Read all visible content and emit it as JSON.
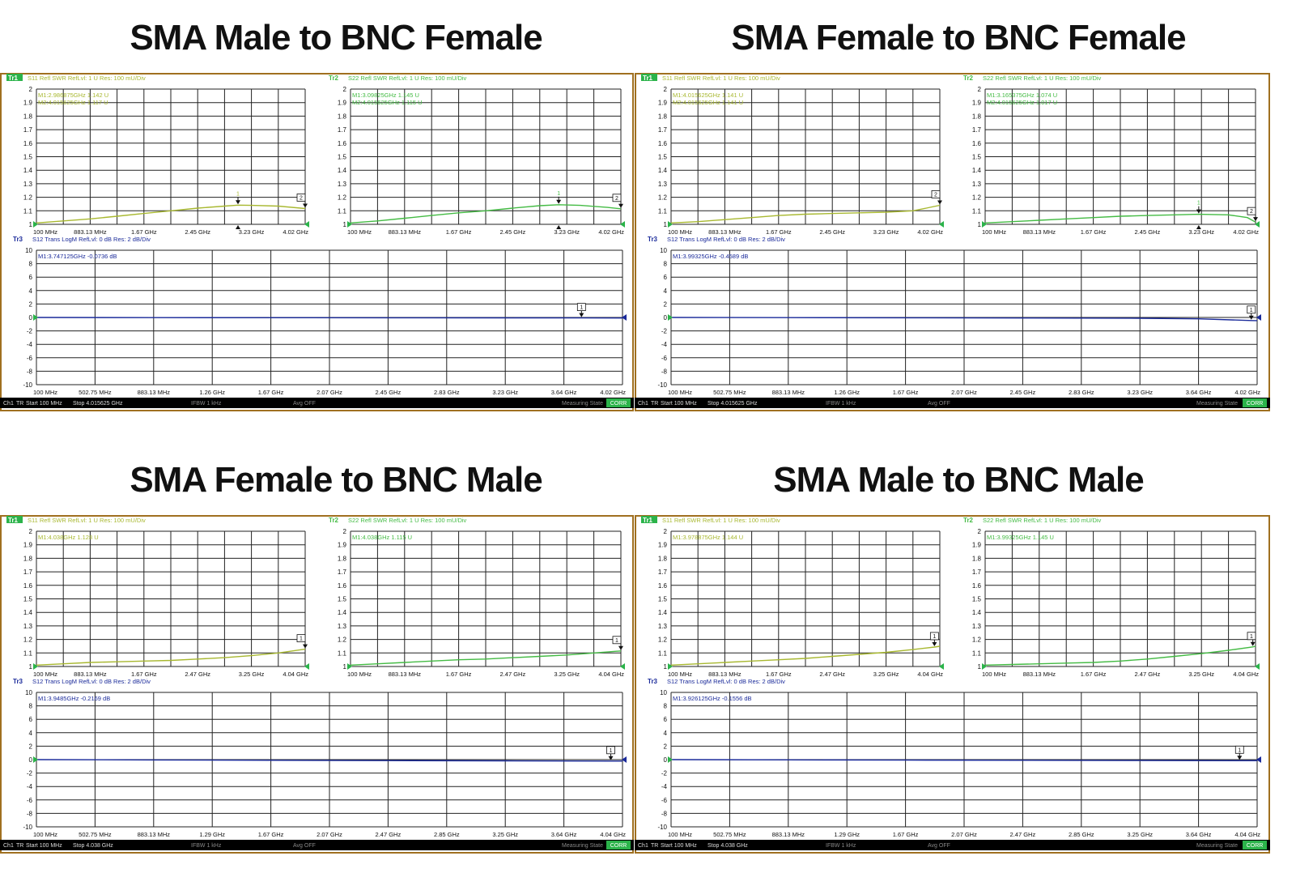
{
  "status_labels": {
    "ch": "Ch1",
    "tr": "TR",
    "start": "Start 100 MHz",
    "ifbw": "IFBW 1 kHz",
    "avg": "Avg OFF",
    "state": "Measuring State",
    "corr": "CORR"
  },
  "colors": {
    "s11": "#a8b830",
    "s22": "#44bb44",
    "s12": "#1a2a9a",
    "grid": "#222222",
    "frame": "#a07020",
    "status_bg": "#000000",
    "corr_bg": "#2bb34a"
  },
  "panels": [
    {
      "title": "SMA Male to BNC Female",
      "stop": "Stop 4.015625 GHz",
      "chart_data": [
        {
          "type": "line",
          "trace_badge": "Tr1",
          "header": "S11 Refl SWR RefLvl: 1  U Res: 100 mU/Div",
          "ylim": [
            1,
            2
          ],
          "yticks": [
            "1",
            "1.1",
            "1.2",
            "1.3",
            "1.4",
            "1.5",
            "1.6",
            "1.7",
            "1.8",
            "1.9",
            "2"
          ],
          "xticks": [
            "100 MHz",
            "883.13 MHz",
            "1.67 GHz",
            "2.45 GHz",
            "3.23 GHz",
            "4.02 GHz"
          ],
          "markers": [
            "M1:2.986875GHz  1.142  U",
            "M2:4.015625GHz  1.117  U"
          ],
          "marker_points": [
            {
              "label": "1",
              "x": 0.75
            },
            {
              "label": "2",
              "x": 1.0
            }
          ],
          "x": [
            0,
            0.1,
            0.2,
            0.3,
            0.4,
            0.5,
            0.6,
            0.7,
            0.75,
            0.8,
            0.9,
            1.0
          ],
          "y": [
            1.01,
            1.025,
            1.04,
            1.06,
            1.08,
            1.1,
            1.12,
            1.135,
            1.142,
            1.14,
            1.135,
            1.117
          ]
        },
        {
          "type": "line",
          "trace_badge": "Tr2",
          "header": "S22 Refl SWR RefLvl: 1  U Res: 100 mU/Div",
          "ylim": [
            1,
            2
          ],
          "yticks": [
            "1",
            "1.1",
            "1.2",
            "1.3",
            "1.4",
            "1.5",
            "1.6",
            "1.7",
            "1.8",
            "1.9",
            "2"
          ],
          "xticks": [
            "100 MHz",
            "883.13 MHz",
            "1.67 GHz",
            "2.45 GHz",
            "3.23 GHz",
            "4.02 GHz"
          ],
          "markers": [
            "M1:3.09825GHz  1.145  U",
            "M2:4.015625GHz  1.115  U"
          ],
          "marker_points": [
            {
              "label": "1",
              "x": 0.77
            },
            {
              "label": "2",
              "x": 1.0
            }
          ],
          "x": [
            0,
            0.1,
            0.2,
            0.3,
            0.4,
            0.5,
            0.6,
            0.7,
            0.77,
            0.85,
            0.95,
            1.0
          ],
          "y": [
            1.01,
            1.025,
            1.045,
            1.065,
            1.085,
            1.1,
            1.12,
            1.138,
            1.145,
            1.14,
            1.125,
            1.115
          ]
        },
        {
          "type": "line",
          "trace_badge": "Tr3",
          "header": "S12 Trans LogM RefLvl: 0  dB Res: 2  dB/Div",
          "ylim": [
            -10,
            10
          ],
          "yticks": [
            "-10",
            "-8",
            "-6",
            "-4",
            "-2",
            "0",
            "2",
            "4",
            "6",
            "8",
            "10"
          ],
          "xticks": [
            "100 MHz",
            "502.75 MHz",
            "883.13 MHz",
            "1.26 GHz",
            "1.67 GHz",
            "2.07 GHz",
            "2.45 GHz",
            "2.83 GHz",
            "3.23 GHz",
            "3.64 GHz",
            "4.02 GHz"
          ],
          "markers": [
            "M1:3.747125GHz  -0.0736  dB"
          ],
          "marker_points": [
            {
              "label": "1",
              "x": 0.93
            }
          ],
          "x": [
            0,
            0.2,
            0.4,
            0.6,
            0.8,
            0.93,
            1.0
          ],
          "y": [
            0,
            -0.02,
            -0.04,
            -0.05,
            -0.06,
            -0.0736,
            -0.08
          ]
        }
      ]
    },
    {
      "title": "SMA Female to BNC Female",
      "stop": "Stop 4.015625 GHz",
      "chart_data": [
        {
          "type": "line",
          "trace_badge": "Tr1",
          "header": "S11 Refl SWR RefLvl: 1  U Res: 100 mU/Div",
          "ylim": [
            1,
            2
          ],
          "yticks": [
            "1",
            "1.1",
            "1.2",
            "1.3",
            "1.4",
            "1.5",
            "1.6",
            "1.7",
            "1.8",
            "1.9",
            "2"
          ],
          "xticks": [
            "100 MHz",
            "883.13 MHz",
            "1.67 GHz",
            "2.45 GHz",
            "3.23 GHz",
            "4.02 GHz"
          ],
          "markers": [
            "M1:4.015625GHz  1.141  U",
            "M2:4.015625GHz  1.141  U"
          ],
          "marker_points": [
            {
              "label": "2",
              "x": 1.0
            }
          ],
          "x": [
            0,
            0.1,
            0.2,
            0.3,
            0.4,
            0.5,
            0.6,
            0.7,
            0.8,
            0.9,
            0.95,
            1.0
          ],
          "y": [
            1.01,
            1.02,
            1.035,
            1.05,
            1.065,
            1.075,
            1.08,
            1.085,
            1.09,
            1.1,
            1.12,
            1.141
          ]
        },
        {
          "type": "line",
          "trace_badge": "Tr2",
          "header": "S22 Refl SWR RefLvl: 1  U Res: 100 mU/Div",
          "ylim": [
            1,
            2
          ],
          "yticks": [
            "1",
            "1.1",
            "1.2",
            "1.3",
            "1.4",
            "1.5",
            "1.6",
            "1.7",
            "1.8",
            "1.9",
            "2"
          ],
          "xticks": [
            "100 MHz",
            "883.13 MHz",
            "1.67 GHz",
            "2.45 GHz",
            "3.23 GHz",
            "4.02 GHz"
          ],
          "markers": [
            "M1:3.165375GHz  1.074  U",
            "M2:4.015625GHz  1.017  U"
          ],
          "marker_points": [
            {
              "label": "1",
              "x": 0.79
            },
            {
              "label": "2",
              "x": 1.0
            }
          ],
          "x": [
            0,
            0.1,
            0.2,
            0.3,
            0.4,
            0.5,
            0.6,
            0.7,
            0.79,
            0.9,
            0.97,
            1.0
          ],
          "y": [
            1.01,
            1.02,
            1.03,
            1.04,
            1.05,
            1.06,
            1.065,
            1.07,
            1.074,
            1.07,
            1.05,
            1.017
          ]
        },
        {
          "type": "line",
          "trace_badge": "Tr3",
          "header": "S12 Trans LogM RefLvl: 0  dB Res: 2  dB/Div",
          "ylim": [
            -10,
            10
          ],
          "yticks": [
            "-10",
            "-8",
            "-6",
            "-4",
            "-2",
            "0",
            "2",
            "4",
            "6",
            "8",
            "10"
          ],
          "xticks": [
            "100 MHz",
            "502.75 MHz",
            "883.13 MHz",
            "1.26 GHz",
            "1.67 GHz",
            "2.07 GHz",
            "2.45 GHz",
            "2.83 GHz",
            "3.23 GHz",
            "3.64 GHz",
            "4.02 GHz"
          ],
          "markers": [
            "M1:3.99325GHz  -0.4589  dB"
          ],
          "marker_points": [
            {
              "label": "1",
              "x": 0.99
            }
          ],
          "x": [
            0,
            0.2,
            0.4,
            0.6,
            0.8,
            0.9,
            0.99,
            1.0
          ],
          "y": [
            0,
            -0.03,
            -0.05,
            -0.08,
            -0.12,
            -0.2,
            -0.4589,
            -0.47
          ]
        }
      ]
    },
    {
      "title": "SMA Female to BNC Male",
      "stop": "Stop 4.038 GHz",
      "chart_data": [
        {
          "type": "line",
          "trace_badge": "Tr1",
          "header": "S11 Refl SWR RefLvl: 1  U Res: 100 mU/Div",
          "ylim": [
            1,
            2
          ],
          "yticks": [
            "1",
            "1.1",
            "1.2",
            "1.3",
            "1.4",
            "1.5",
            "1.6",
            "1.7",
            "1.8",
            "1.9",
            "2"
          ],
          "xticks": [
            "100 MHz",
            "883.13 MHz",
            "1.67 GHz",
            "2.47 GHz",
            "3.25 GHz",
            "4.04 GHz"
          ],
          "markers": [
            "M1:4.038GHz  1.128  U"
          ],
          "marker_points": [
            {
              "label": "1",
              "x": 1.0
            }
          ],
          "x": [
            0,
            0.1,
            0.2,
            0.3,
            0.4,
            0.5,
            0.6,
            0.7,
            0.8,
            0.9,
            1.0
          ],
          "y": [
            1.01,
            1.02,
            1.03,
            1.035,
            1.04,
            1.045,
            1.055,
            1.065,
            1.08,
            1.1,
            1.128
          ]
        },
        {
          "type": "line",
          "trace_badge": "Tr2",
          "header": "S22 Refl SWR RefLvl: 1  U Res: 100 mU/Div",
          "ylim": [
            1,
            2
          ],
          "yticks": [
            "1",
            "1.1",
            "1.2",
            "1.3",
            "1.4",
            "1.5",
            "1.6",
            "1.7",
            "1.8",
            "1.9",
            "2"
          ],
          "xticks": [
            "100 MHz",
            "883.13 MHz",
            "1.67 GHz",
            "2.47 GHz",
            "3.25 GHz",
            "4.04 GHz"
          ],
          "markers": [
            "M1:4.038GHz  1.115  U"
          ],
          "marker_points": [
            {
              "label": "1",
              "x": 1.0
            }
          ],
          "x": [
            0,
            0.1,
            0.2,
            0.3,
            0.4,
            0.5,
            0.6,
            0.7,
            0.8,
            0.9,
            1.0
          ],
          "y": [
            1.01,
            1.02,
            1.03,
            1.04,
            1.05,
            1.055,
            1.065,
            1.075,
            1.085,
            1.1,
            1.115
          ]
        },
        {
          "type": "line",
          "trace_badge": "Tr3",
          "header": "S12 Trans LogM RefLvl: 0  dB Res: 2  dB/Div",
          "ylim": [
            -10,
            10
          ],
          "yticks": [
            "-10",
            "-8",
            "-6",
            "-4",
            "-2",
            "0",
            "2",
            "4",
            "6",
            "8",
            "10"
          ],
          "xticks": [
            "100 MHz",
            "502.75 MHz",
            "883.13 MHz",
            "1.29 GHz",
            "1.67 GHz",
            "2.07 GHz",
            "2.47 GHz",
            "2.85 GHz",
            "3.25 GHz",
            "3.64 GHz",
            "4.04 GHz"
          ],
          "markers": [
            "M1:3.9485GHz  -0.2169  dB"
          ],
          "marker_points": [
            {
              "label": "1",
              "x": 0.98
            }
          ],
          "x": [
            0,
            0.2,
            0.4,
            0.6,
            0.8,
            0.98,
            1.0
          ],
          "y": [
            0,
            -0.05,
            -0.1,
            -0.14,
            -0.18,
            -0.2169,
            -0.22
          ]
        }
      ]
    },
    {
      "title": "SMA Male to BNC Male",
      "stop": "Stop 4.038 GHz",
      "chart_data": [
        {
          "type": "line",
          "trace_badge": "Tr1",
          "header": "S11 Refl SWR RefLvl: 1  U Res: 100 mU/Div",
          "ylim": [
            1,
            2
          ],
          "yticks": [
            "1",
            "1.1",
            "1.2",
            "1.3",
            "1.4",
            "1.5",
            "1.6",
            "1.7",
            "1.8",
            "1.9",
            "2"
          ],
          "xticks": [
            "100 MHz",
            "883.13 MHz",
            "1.67 GHz",
            "2.47 GHz",
            "3.25 GHz",
            "4.04 GHz"
          ],
          "markers": [
            "M1:3.978875GHz  1.144  U"
          ],
          "marker_points": [
            {
              "label": "1",
              "x": 0.98
            }
          ],
          "x": [
            0,
            0.1,
            0.2,
            0.3,
            0.4,
            0.5,
            0.6,
            0.7,
            0.8,
            0.9,
            0.98,
            1.0
          ],
          "y": [
            1.01,
            1.02,
            1.03,
            1.04,
            1.05,
            1.06,
            1.075,
            1.09,
            1.105,
            1.125,
            1.144,
            1.15
          ]
        },
        {
          "type": "line",
          "trace_badge": "Tr2",
          "header": "S22 Refl SWR RefLvl: 1  U Res: 100 mU/Div",
          "ylim": [
            1,
            2
          ],
          "yticks": [
            "1",
            "1.1",
            "1.2",
            "1.3",
            "1.4",
            "1.5",
            "1.6",
            "1.7",
            "1.8",
            "1.9",
            "2"
          ],
          "xticks": [
            "100 MHz",
            "883.13 MHz",
            "1.67 GHz",
            "2.47 GHz",
            "3.25 GHz",
            "4.04 GHz"
          ],
          "markers": [
            "M1:3.99325GHz  1.145  U"
          ],
          "marker_points": [
            {
              "label": "1",
              "x": 0.99
            }
          ],
          "x": [
            0,
            0.1,
            0.2,
            0.3,
            0.4,
            0.5,
            0.6,
            0.7,
            0.8,
            0.9,
            0.99,
            1.0
          ],
          "y": [
            1.01,
            1.015,
            1.02,
            1.025,
            1.03,
            1.04,
            1.055,
            1.075,
            1.095,
            1.12,
            1.145,
            1.15
          ]
        },
        {
          "type": "line",
          "trace_badge": "Tr3",
          "header": "S12 Trans LogM RefLvl: 0  dB Res: 2  dB/Div",
          "ylim": [
            -10,
            10
          ],
          "yticks": [
            "-10",
            "-8",
            "-6",
            "-4",
            "-2",
            "0",
            "2",
            "4",
            "6",
            "8",
            "10"
          ],
          "xticks": [
            "100 MHz",
            "502.75 MHz",
            "883.13 MHz",
            "1.29 GHz",
            "1.67 GHz",
            "2.07 GHz",
            "2.47 GHz",
            "2.85 GHz",
            "3.25 GHz",
            "3.64 GHz",
            "4.04 GHz"
          ],
          "markers": [
            "M1:3.926125GHz  -0.1556  dB"
          ],
          "marker_points": [
            {
              "label": "1",
              "x": 0.97
            }
          ],
          "x": [
            0,
            0.2,
            0.4,
            0.6,
            0.8,
            0.97,
            1.0
          ],
          "y": [
            0,
            -0.04,
            -0.07,
            -0.1,
            -0.13,
            -0.1556,
            -0.16
          ]
        }
      ]
    }
  ]
}
